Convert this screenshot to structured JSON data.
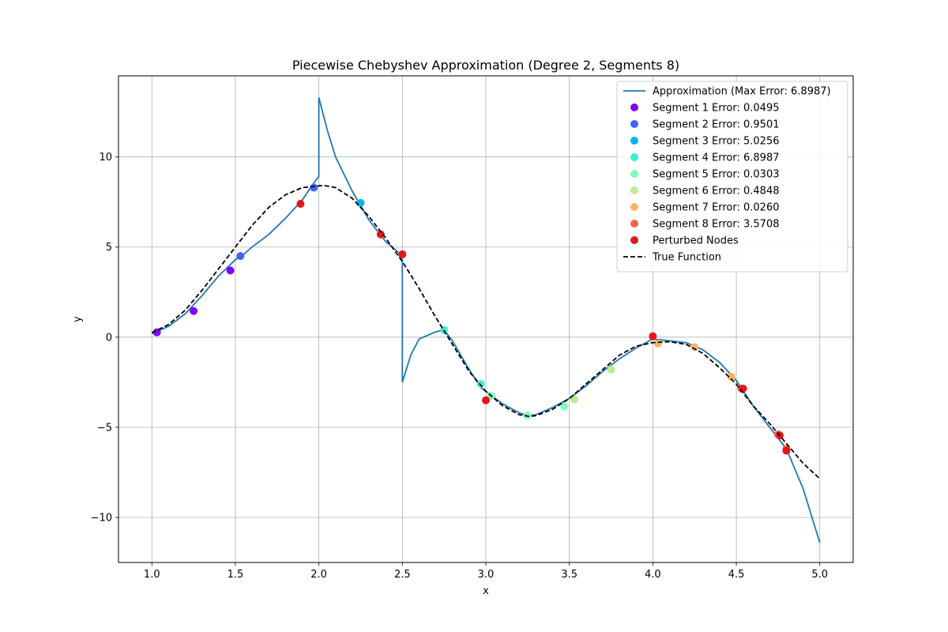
{
  "chart_data": {
    "type": "line",
    "title": "Piecewise Chebyshev Approximation (Degree 2, Segments 8)",
    "xlabel": "x",
    "ylabel": "y",
    "xlim": [
      0.8,
      5.2
    ],
    "ylim": [
      -12.5,
      14.5
    ],
    "xticks": [
      1.0,
      1.5,
      2.0,
      2.5,
      3.0,
      3.5,
      4.0,
      4.5,
      5.0
    ],
    "xtick_labels": [
      "1.0",
      "1.5",
      "2.0",
      "2.5",
      "3.0",
      "3.5",
      "4.0",
      "4.5",
      "5.0"
    ],
    "yticks": [
      -10,
      -5,
      0,
      5,
      10
    ],
    "ytick_labels": [
      "−10",
      "−5",
      "0",
      "5",
      "10"
    ],
    "grid": true,
    "legend_position": "top-right",
    "approximation": {
      "label": "Approximation (Max Error: 6.8987)",
      "color": "#1f77b4",
      "x": [
        1.0,
        1.1,
        1.2,
        1.3,
        1.4,
        1.5,
        1.55,
        1.6,
        1.7,
        1.8,
        1.9,
        1.95,
        1.99,
        2.0,
        2.0,
        2.05,
        2.1,
        2.2,
        2.25,
        2.3,
        2.4,
        2.49,
        2.5,
        2.5,
        2.55,
        2.6,
        2.7,
        2.75,
        2.8,
        2.9,
        2.97,
        3.0,
        3.0,
        3.1,
        3.2,
        3.25,
        3.3,
        3.4,
        3.5,
        3.6,
        3.7,
        3.8,
        3.9,
        4.0,
        4.1,
        4.2,
        4.3,
        4.4,
        4.5,
        4.6,
        4.7,
        4.8,
        4.9,
        5.0
      ],
      "y": [
        0.2,
        0.6,
        1.3,
        2.3,
        3.4,
        4.3,
        4.6,
        5.0,
        5.7,
        6.6,
        7.6,
        8.3,
        8.8,
        8.9,
        13.3,
        11.5,
        10.0,
        8.1,
        7.3,
        6.5,
        5.3,
        4.6,
        4.6,
        -2.5,
        -1.0,
        -0.1,
        0.3,
        0.4,
        -0.2,
        -1.8,
        -2.8,
        -3.0,
        -3.0,
        -3.7,
        -4.2,
        -4.35,
        -4.3,
        -3.9,
        -3.4,
        -2.7,
        -1.9,
        -1.2,
        -0.6,
        -0.1,
        -0.2,
        -0.3,
        -0.7,
        -1.4,
        -2.4,
        -3.8,
        -5.0,
        -6.2,
        -8.4,
        -11.4
      ]
    },
    "true_function": {
      "label": "True Function",
      "color": "#000000",
      "x": [
        1.0,
        1.1,
        1.2,
        1.3,
        1.4,
        1.5,
        1.6,
        1.7,
        1.8,
        1.9,
        2.0,
        2.03,
        2.1,
        2.2,
        2.3,
        2.4,
        2.5,
        2.6,
        2.7,
        2.8,
        2.9,
        3.0,
        3.1,
        3.2,
        3.26,
        3.3,
        3.4,
        3.5,
        3.6,
        3.7,
        3.8,
        3.9,
        4.0,
        4.1,
        4.2,
        4.3,
        4.4,
        4.5,
        4.6,
        4.7,
        4.8,
        4.9,
        5.0
      ],
      "y": [
        0.25,
        0.7,
        1.5,
        2.6,
        3.8,
        5.0,
        6.2,
        7.2,
        7.9,
        8.3,
        8.4,
        8.42,
        8.3,
        7.7,
        6.7,
        5.5,
        4.2,
        2.7,
        1.1,
        -0.4,
        -1.9,
        -3.0,
        -3.8,
        -4.3,
        -4.4,
        -4.35,
        -4.0,
        -3.4,
        -2.6,
        -1.8,
        -1.0,
        -0.5,
        -0.3,
        -0.25,
        -0.4,
        -0.9,
        -1.7,
        -2.6,
        -3.8,
        -4.8,
        -5.9,
        -7.0,
        -7.85
      ]
    },
    "segments": [
      {
        "label": "Segment 1 Error: 0.0495",
        "color": "#8000ff",
        "points": [
          [
            1.03,
            0.27
          ],
          [
            1.25,
            1.45
          ],
          [
            1.47,
            3.7
          ]
        ]
      },
      {
        "label": "Segment 2 Error: 0.9501",
        "color": "#4062fa",
        "points": [
          [
            1.53,
            4.5
          ],
          [
            1.97,
            8.3
          ]
        ]
      },
      {
        "label": "Segment 3 Error: 5.0256",
        "color": "#00b5eb",
        "points": [
          [
            2.25,
            7.45
          ]
        ]
      },
      {
        "label": "Segment 4 Error: 6.8987",
        "color": "#40ecd4",
        "points": [
          [
            2.75,
            0.4
          ],
          [
            2.97,
            -2.6
          ]
        ]
      },
      {
        "label": "Segment 5 Error: 0.0303",
        "color": "#80ffb4",
        "points": [
          [
            3.03,
            -3.25
          ],
          [
            3.25,
            -4.35
          ],
          [
            3.47,
            -3.85
          ]
        ]
      },
      {
        "label": "Segment 6 Error: 0.4848",
        "color": "#c0eb8d",
        "points": [
          [
            3.53,
            -3.45
          ],
          [
            3.75,
            -1.8
          ]
        ]
      },
      {
        "label": "Segment 7 Error: 0.0260",
        "color": "#ffb360",
        "points": [
          [
            4.03,
            -0.35
          ],
          [
            4.25,
            -0.55
          ],
          [
            4.47,
            -2.2
          ]
        ]
      },
      {
        "label": "Segment 8 Error: 3.5708",
        "color": "#ff6240",
        "points": [
          [
            4.53,
            -2.85
          ],
          [
            4.75,
            -5.4
          ],
          [
            4.8,
            -6.2
          ]
        ]
      }
    ],
    "perturbed_nodes": {
      "label": "Perturbed Nodes",
      "color": "#e8141e",
      "points": [
        [
          1.89,
          7.4
        ],
        [
          2.37,
          5.7
        ],
        [
          2.5,
          4.6
        ],
        [
          3.0,
          -3.5
        ],
        [
          4.0,
          0.05
        ],
        [
          4.54,
          -2.85
        ],
        [
          4.76,
          -5.45
        ],
        [
          4.8,
          -6.3
        ]
      ]
    }
  }
}
